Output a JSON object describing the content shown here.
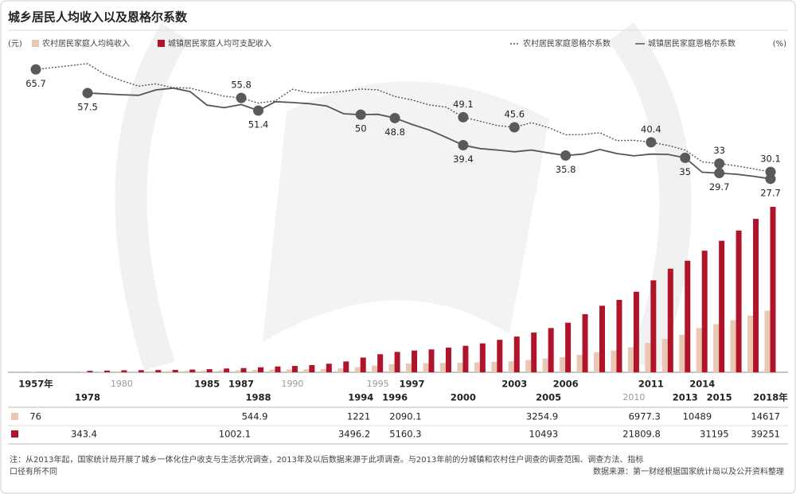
{
  "chart_data": {
    "type": "bar-line",
    "title": "城乡居民人均收入以及恩格尔系数",
    "unit_left": "(元)",
    "unit_right": "(%)",
    "categories": [
      "1957年",
      "1978",
      null,
      "1980",
      null,
      null,
      null,
      null,
      "1985",
      null,
      "1987",
      "1988",
      null,
      "1990",
      null,
      null,
      null,
      "1994",
      "1995",
      "1996",
      "1997",
      null,
      null,
      "2000",
      null,
      null,
      "2003",
      null,
      "2005",
      "2006",
      null,
      null,
      null,
      "2010",
      "2011",
      null,
      "2013",
      "2014",
      "2015",
      null,
      null,
      "2018年"
    ],
    "ylim": [
      0,
      40000
    ],
    "y2lim": [
      25,
      75
    ],
    "series": [
      {
        "name": "农村居民家庭人均纯收入",
        "type": "bar",
        "color": "#e9c7b3",
        "values": [
          76,
          134,
          160,
          191,
          223,
          270,
          310,
          355,
          398,
          424,
          462,
          544.9,
          602,
          686,
          709,
          784,
          922,
          1221,
          1578,
          1926,
          2090.1,
          2162,
          2210,
          2253,
          2366,
          2476,
          2622,
          2936,
          3254.9,
          3587,
          4140,
          4761,
          5153,
          5919,
          6977.3,
          7917,
          8896,
          10489,
          11422,
          12363,
          13432,
          14617
        ],
        "table_points": [
          0,
          11,
          17,
          20,
          28,
          34,
          37,
          41
        ]
      },
      {
        "name": "城镇居民家庭人均可支配收入",
        "type": "bar",
        "color": "#b0142a",
        "values": [
          null,
          343.4,
          405,
          478,
          500,
          535,
          565,
          652,
          739,
          900,
          1002.1,
          1180,
          1374,
          1510,
          1701,
          2027,
          2577,
          3496.2,
          4283,
          4839,
          5160.3,
          5425,
          5854,
          6280,
          6860,
          7703,
          8472,
          9422,
          10493,
          11759,
          13786,
          15781,
          17175,
          19109,
          21809.8,
          24565,
          26467,
          28844,
          31195,
          33616,
          36396,
          39251
        ],
        "table_points": [
          1,
          10,
          17,
          20,
          28,
          34,
          38,
          41
        ]
      },
      {
        "name": "农村居民家庭恩格尔系数",
        "type": "line",
        "axis": "y2",
        "color": "#555555",
        "dash": true,
        "values": [
          65.7,
          67.7,
          64,
          61.8,
          59.9,
          60.7,
          59.4,
          59.2,
          57.8,
          56.4,
          55.8,
          54,
          54.8,
          58.8,
          57.6,
          57.6,
          58.1,
          58.9,
          58.6,
          56.3,
          55.1,
          53.4,
          52.6,
          49.1,
          47.7,
          46.2,
          45.6,
          47.2,
          45.5,
          43,
          43.1,
          43.7,
          41,
          41.1,
          40.4,
          39.3,
          37.7,
          33.6,
          33,
          32.2,
          31.2,
          30.1
        ],
        "labeled_points": [
          0,
          10,
          23,
          26,
          34,
          38,
          41
        ]
      },
      {
        "name": "城镇居民家庭恩格尔系数",
        "type": "line",
        "axis": "y2",
        "color": "#555555",
        "dash": false,
        "values": [
          null,
          57.5,
          57.2,
          56.9,
          56.7,
          58.6,
          59.2,
          58,
          53.3,
          52.4,
          53.5,
          51.4,
          54.5,
          54.2,
          53.8,
          53,
          50.3,
          50,
          50.1,
          48.8,
          46.6,
          44.7,
          42.1,
          39.4,
          38.2,
          37.7,
          37.1,
          37.7,
          36.7,
          35.8,
          36.3,
          37.9,
          36.5,
          35.7,
          36.3,
          36.2,
          35,
          30,
          29.7,
          29.3,
          28.6,
          27.7
        ],
        "labeled_points": [
          1,
          11,
          17,
          19,
          23,
          29,
          36,
          38,
          41
        ]
      }
    ],
    "note": "注：从2013年起，国家统计局开展了城乡一体化住户收支与生活状况调查，2013年及以后数据来源于此项调查。与2013年前的分城镇和农村住户调查的调查范围、调查方法、指标",
    "note_line2": "口径有所不同",
    "source": "数据来源：第一财经根据国家统计局以及公开资料整理"
  }
}
